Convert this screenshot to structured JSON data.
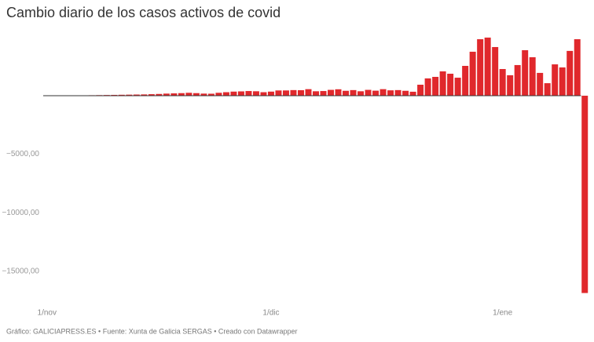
{
  "chart_data": {
    "type": "bar",
    "title": "Cambio diario de los casos activos de covid",
    "source": "Gráfico: GALICIAPRESS.ES • Fuente: Xunta de Galicia SERGAS • Creado con Datawrapper",
    "color": "#e0282c",
    "categories": [
      "1/nov",
      null,
      null,
      null,
      null,
      null,
      null,
      null,
      null,
      null,
      null,
      null,
      null,
      null,
      null,
      null,
      null,
      null,
      null,
      null,
      null,
      null,
      null,
      null,
      null,
      null,
      null,
      null,
      null,
      null,
      "1/dic",
      null,
      null,
      null,
      null,
      null,
      null,
      null,
      null,
      null,
      null,
      null,
      null,
      null,
      null,
      null,
      null,
      null,
      null,
      null,
      null,
      null,
      null,
      null,
      null,
      null,
      null,
      null,
      null,
      null,
      null,
      "1/ene",
      null,
      null,
      null,
      null,
      null,
      null,
      null,
      null,
      null,
      null,
      null
    ],
    "values": [
      10,
      15,
      20,
      20,
      30,
      30,
      40,
      50,
      60,
      70,
      80,
      90,
      100,
      110,
      130,
      150,
      180,
      200,
      220,
      250,
      220,
      180,
      170,
      250,
      300,
      350,
      370,
      400,
      380,
      300,
      350,
      450,
      450,
      480,
      470,
      560,
      380,
      400,
      500,
      550,
      420,
      480,
      380,
      500,
      430,
      560,
      460,
      480,
      420,
      340,
      940,
      1480,
      1610,
      2080,
      1880,
      1540,
      2550,
      3760,
      4830,
      4970,
      4160,
      2280,
      1750,
      2620,
      3890,
      3290,
      1950,
      1070,
      2680,
      2420,
      3830,
      4830,
      -16870
    ],
    "ylim": [
      -17000,
      5500
    ],
    "yticks": [
      {
        "value": -5000,
        "label": "−5000,00"
      },
      {
        "value": -10000,
        "label": "−10000,00"
      },
      {
        "value": -15000,
        "label": "−15000,00"
      }
    ]
  }
}
